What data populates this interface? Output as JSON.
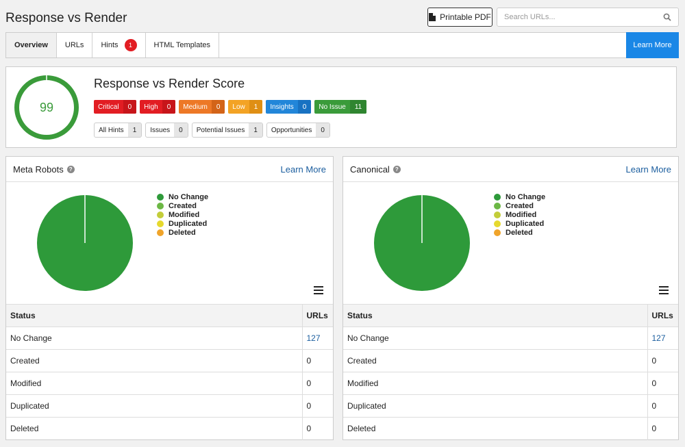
{
  "page": {
    "title": "Response vs Render",
    "pdf_label": "Printable PDF",
    "search_placeholder": "Search URLs..."
  },
  "tabs": [
    {
      "label": "Overview",
      "active": true
    },
    {
      "label": "URLs"
    },
    {
      "label": "Hints",
      "badge": "1"
    },
    {
      "label": "HTML Templates"
    }
  ],
  "learn_more_button": "Learn More",
  "score": {
    "value": "99",
    "title": "Response vs Render Score",
    "severities": [
      {
        "label": "Critical",
        "count": "0",
        "color": "#e21d23",
        "dark": "#c7151a"
      },
      {
        "label": "High",
        "count": "0",
        "color": "#e21d23",
        "dark": "#c7151a"
      },
      {
        "label": "Medium",
        "count": "0",
        "color": "#ed7826",
        "dark": "#d36418"
      },
      {
        "label": "Low",
        "count": "1",
        "color": "#f3a325",
        "dark": "#df8f14"
      },
      {
        "label": "Insights",
        "count": "0",
        "color": "#2286d9",
        "dark": "#1872c2"
      },
      {
        "label": "No Issue",
        "count": "11",
        "color": "#3a9b3a",
        "dark": "#2f8530"
      }
    ],
    "hint_types": [
      {
        "label": "All Hints",
        "count": "1"
      },
      {
        "label": "Issues",
        "count": "0"
      },
      {
        "label": "Potential Issues",
        "count": "1"
      },
      {
        "label": "Opportunities",
        "count": "0"
      }
    ]
  },
  "panels": [
    {
      "title": "Meta Robots",
      "link": "Learn More",
      "legend": [
        {
          "label": "No Change",
          "color": "#2e9a3a"
        },
        {
          "label": "Created",
          "color": "#6cb845"
        },
        {
          "label": "Modified",
          "color": "#c3cd3a"
        },
        {
          "label": "Duplicated",
          "color": "#e6d92e"
        },
        {
          "label": "Deleted",
          "color": "#f0a42a"
        }
      ],
      "chart_data": {
        "type": "pie",
        "categories": [
          "No Change",
          "Created",
          "Modified",
          "Duplicated",
          "Deleted"
        ],
        "values": [
          127,
          0,
          0,
          0,
          0
        ]
      },
      "table": {
        "headers": [
          "Status",
          "URLs"
        ],
        "rows": [
          {
            "status": "No Change",
            "urls": "127",
            "link": true
          },
          {
            "status": "Created",
            "urls": "0"
          },
          {
            "status": "Modified",
            "urls": "0"
          },
          {
            "status": "Duplicated",
            "urls": "0"
          },
          {
            "status": "Deleted",
            "urls": "0"
          }
        ]
      }
    },
    {
      "title": "Canonical",
      "link": "Learn More",
      "legend": [
        {
          "label": "No Change",
          "color": "#2e9a3a"
        },
        {
          "label": "Created",
          "color": "#6cb845"
        },
        {
          "label": "Modified",
          "color": "#c3cd3a"
        },
        {
          "label": "Duplicated",
          "color": "#e6d92e"
        },
        {
          "label": "Deleted",
          "color": "#f0a42a"
        }
      ],
      "chart_data": {
        "type": "pie",
        "categories": [
          "No Change",
          "Created",
          "Modified",
          "Duplicated",
          "Deleted"
        ],
        "values": [
          127,
          0,
          0,
          0,
          0
        ]
      },
      "table": {
        "headers": [
          "Status",
          "URLs"
        ],
        "rows": [
          {
            "status": "No Change",
            "urls": "127",
            "link": true
          },
          {
            "status": "Created",
            "urls": "0"
          },
          {
            "status": "Modified",
            "urls": "0"
          },
          {
            "status": "Duplicated",
            "urls": "0"
          },
          {
            "status": "Deleted",
            "urls": "0"
          }
        ]
      }
    }
  ]
}
